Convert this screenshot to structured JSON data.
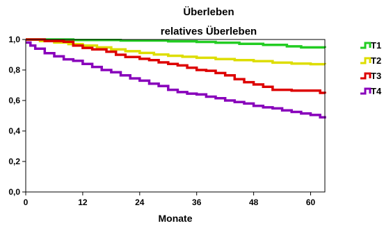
{
  "chart_data": {
    "type": "line",
    "step": true,
    "title": "Überleben",
    "subtitle": "relatives Überleben",
    "xlabel": "Monate",
    "ylabel": "",
    "xlim": [
      0,
      63
    ],
    "ylim": [
      0,
      1
    ],
    "xticks": [
      0,
      12,
      24,
      36,
      48,
      60
    ],
    "yticks": [
      0.0,
      0.2,
      0.4,
      0.6,
      0.8,
      1.0
    ],
    "xtick_labels": [
      "0",
      "12",
      "24",
      "36",
      "48",
      "60"
    ],
    "ytick_labels": [
      "0,0",
      "0,2",
      "0,4",
      "0,6",
      "0,8",
      "1,0"
    ],
    "grid": false,
    "legend_position": "right",
    "series": [
      {
        "name": "T1",
        "color": "#22cc22",
        "x": [
          0,
          10,
          20,
          30,
          36,
          40,
          45,
          50,
          55,
          58,
          63
        ],
        "y": [
          1.0,
          0.997,
          0.993,
          0.988,
          0.984,
          0.979,
          0.972,
          0.965,
          0.955,
          0.948,
          0.945
        ]
      },
      {
        "name": "T2",
        "color": "#dddd00",
        "x": [
          0,
          3,
          6,
          9,
          12,
          15,
          18,
          21,
          24,
          27,
          30,
          33,
          36,
          40,
          44,
          48,
          52,
          56,
          60,
          63
        ],
        "y": [
          1.0,
          0.99,
          0.98,
          0.97,
          0.96,
          0.948,
          0.935,
          0.923,
          0.912,
          0.902,
          0.893,
          0.887,
          0.88,
          0.872,
          0.865,
          0.858,
          0.848,
          0.842,
          0.838,
          0.837
        ]
      },
      {
        "name": "T3",
        "color": "#dd0000",
        "x": [
          0,
          4,
          8,
          10,
          12,
          14,
          17,
          19,
          21,
          24,
          26,
          28,
          30,
          32,
          34,
          36,
          38,
          40,
          42,
          44,
          46,
          48,
          50,
          52,
          56,
          60,
          62,
          63
        ],
        "y": [
          1.0,
          0.99,
          0.985,
          0.96,
          0.945,
          0.935,
          0.92,
          0.9,
          0.885,
          0.873,
          0.865,
          0.85,
          0.84,
          0.83,
          0.815,
          0.8,
          0.795,
          0.78,
          0.765,
          0.74,
          0.72,
          0.705,
          0.69,
          0.67,
          0.665,
          0.665,
          0.65,
          0.645
        ]
      },
      {
        "name": "T4",
        "color": "#8800bb",
        "x": [
          0,
          1,
          2,
          4,
          6,
          8,
          10,
          12,
          14,
          16,
          18,
          20,
          22,
          24,
          26,
          28,
          30,
          32,
          34,
          36,
          38,
          40,
          42,
          44,
          46,
          48,
          50,
          52,
          54,
          56,
          58,
          60,
          62,
          63
        ],
        "y": [
          0.98,
          0.96,
          0.94,
          0.91,
          0.89,
          0.87,
          0.86,
          0.84,
          0.82,
          0.8,
          0.785,
          0.765,
          0.745,
          0.73,
          0.71,
          0.695,
          0.67,
          0.655,
          0.645,
          0.64,
          0.625,
          0.615,
          0.6,
          0.59,
          0.58,
          0.565,
          0.555,
          0.548,
          0.535,
          0.525,
          0.515,
          0.505,
          0.49,
          0.482
        ]
      }
    ]
  }
}
